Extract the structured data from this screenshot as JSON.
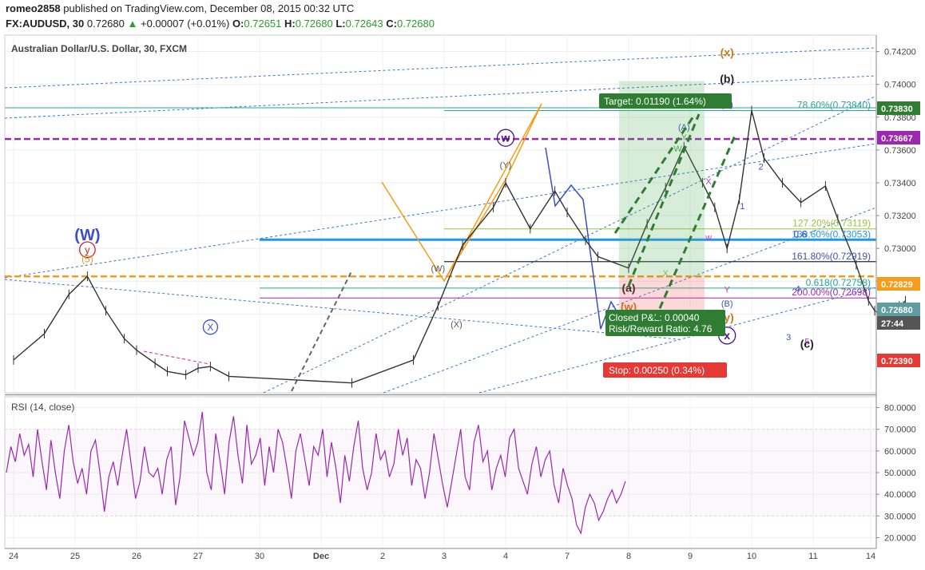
{
  "header": {
    "user": "romeo2858",
    "published_text": "published on TradingView.com, December 08, 2015 00:32 UTC",
    "symbol": "FX:AUDUSD, 30",
    "last": "0.72680",
    "change": "+0.00007 (+0.01%)",
    "o_label": "O:",
    "o": "0.72651",
    "h_label": "H:",
    "h": "0.72680",
    "l_label": "L:",
    "l": "0.72643",
    "c_label": "C:",
    "c": "0.72680"
  },
  "chart_data": {
    "type": "line",
    "title": "Australian Dollar/U.S. Dollar, 30, FXCM",
    "x_ticks": [
      "24",
      "25",
      "26",
      "27",
      "30",
      "Dec",
      "2",
      "3",
      "4",
      "7",
      "8",
      "9",
      "10",
      "11",
      "14"
    ],
    "price_axis": {
      "ticks": [
        "0.74200",
        "0.74000",
        "0.73800",
        "0.73600",
        "0.73400",
        "0.73200",
        "0.73000",
        "0.72800",
        "0.72600"
      ],
      "ylim": [
        0.7212,
        0.743
      ]
    },
    "price_series": {
      "name": "AUDUSD",
      "points": [
        [
          24.0,
          0.7232
        ],
        [
          24.5,
          0.7248
        ],
        [
          24.9,
          0.7272
        ],
        [
          25.2,
          0.7283
        ],
        [
          25.5,
          0.7262
        ],
        [
          25.8,
          0.7245
        ],
        [
          26.0,
          0.7238
        ],
        [
          26.3,
          0.723
        ],
        [
          26.5,
          0.7225
        ],
        [
          26.8,
          0.7223
        ],
        [
          27.0,
          0.7227
        ],
        [
          27.2,
          0.7228
        ],
        [
          27.5,
          0.7222
        ],
        [
          29.5,
          0.7218
        ],
        [
          30.5,
          0.7232
        ],
        [
          30.9,
          0.7265
        ],
        [
          31.3,
          0.7302
        ],
        [
          31.8,
          0.7325
        ],
        [
          32.0,
          0.734
        ],
        [
          32.4,
          0.7312
        ],
        [
          32.8,
          0.7335
        ],
        [
          33.0,
          0.7322
        ],
        [
          33.3,
          0.7305
        ],
        [
          33.5,
          0.7295
        ],
        [
          34.0,
          0.7288
        ],
        [
          34.3,
          0.7315
        ],
        [
          34.6,
          0.7337
        ],
        [
          34.9,
          0.7362
        ],
        [
          35.2,
          0.734
        ],
        [
          35.4,
          0.7325
        ],
        [
          35.6,
          0.73
        ],
        [
          35.8,
          0.733
        ],
        [
          36.0,
          0.7384
        ],
        [
          36.2,
          0.7355
        ],
        [
          36.5,
          0.734
        ],
        [
          36.8,
          0.7328
        ],
        [
          37.2,
          0.7338
        ],
        [
          37.4,
          0.7318
        ],
        [
          37.7,
          0.729
        ],
        [
          37.9,
          0.7268
        ],
        [
          38.0,
          0.7262
        ],
        [
          38.2,
          0.7258
        ],
        [
          38.4,
          0.7265
        ],
        [
          38.5,
          0.7268
        ]
      ]
    },
    "price_levels": [
      {
        "label": "0.73830",
        "color": "#2e7d32"
      },
      {
        "label": "0.73667",
        "color": "#9c27b0"
      },
      {
        "label": "0.72829",
        "color": "#f59c1a"
      },
      {
        "label": "0.72680",
        "color": "#5f9ea0"
      },
      {
        "label": "0.72390",
        "color": "#e53935"
      },
      {
        "label": "27:44",
        "color": "#555555"
      }
    ],
    "fib_levels": [
      {
        "label": "78.60%(0.73840)",
        "value": 0.7384,
        "color": "#26a69a"
      },
      {
        "label": "127.20%(0.73119)",
        "value": 0.73119,
        "color": "#9bc53d"
      },
      {
        "label": "138.60%(0.73053)",
        "value": 0.73053,
        "color": "#2196f3"
      },
      {
        "label": "161.80%(0.72919)",
        "value": 0.72919,
        "color": "#3f51b5"
      },
      {
        "label": "0.618(0.72758)",
        "value": 0.72758,
        "color": "#26a69a"
      },
      {
        "label": "200.00%(0.72698)",
        "value": 0.72698,
        "color": "#9c27b0"
      }
    ],
    "fib_overlap_fragment": "0.6",
    "horizontal_levels": [
      {
        "value": 0.73667,
        "color": "#9c27b0"
      },
      {
        "value": 0.72829,
        "color": "#f59c1a"
      },
      {
        "value": 0.73053,
        "color": "#2196f3"
      }
    ],
    "trade": {
      "target_label": "Target: 0.01190 (1.64%)",
      "stop_label": "Stop: 0.00250 (0.34%)",
      "pnl_label": "Closed P&L: 0.00040",
      "ratio_label": "Risk/Reward Ratio: 4.76",
      "entry": 0.72829,
      "target": 0.7402,
      "stop": 0.72579
    },
    "wave_labels": [
      {
        "text": "(W)",
        "x": 25.2,
        "y": 0.7305,
        "color": "#3a4fc6",
        "size": 20
      },
      {
        "text": "y",
        "x": 25.2,
        "y": 0.7297,
        "color": "#c62828",
        "size": 13,
        "circle": true
      },
      {
        "text": "(5)",
        "x": 25.2,
        "y": 0.72915,
        "color": "#c9a227",
        "size": 12
      },
      {
        "text": "X",
        "x": 27.2,
        "y": 0.725,
        "color": "#3a4fc6",
        "size": 12,
        "circle": true
      },
      {
        "text": "(W)",
        "x": 30.9,
        "y": 0.7286,
        "color": "#555",
        "size": 11
      },
      {
        "text": "(X)",
        "x": 31.2,
        "y": 0.7252,
        "color": "#555",
        "size": 11
      },
      {
        "text": "w",
        "x": 32.0,
        "y": 0.7365,
        "color": "#4a148c",
        "size": 14,
        "circle": true
      },
      {
        "text": "(Y)",
        "x": 32.0,
        "y": 0.7349,
        "color": "#555",
        "size": 11
      },
      {
        "text": "(a)",
        "x": 34.0,
        "y": 0.72735,
        "color": "#222",
        "size": 14
      },
      {
        "text": "(w)",
        "x": 34.0,
        "y": 0.7262,
        "color": "#c67c1a",
        "size": 14
      },
      {
        "text": "X",
        "x": 34.6,
        "y": 0.7283,
        "color": "#8bc34a",
        "size": 11
      },
      {
        "text": "W",
        "x": 34.8,
        "y": 0.7359,
        "color": "#4caf50",
        "size": 11
      },
      {
        "text": "(A)",
        "x": 34.9,
        "y": 0.7372,
        "color": "#3a4fc6",
        "size": 11
      },
      {
        "text": "Y",
        "x": 34.9,
        "y": 0.7366,
        "color": "#4caf50",
        "size": 11
      },
      {
        "text": "X",
        "x": 35.3,
        "y": 0.7339,
        "color": "#c03fc0",
        "size": 11
      },
      {
        "text": "w",
        "x": 35.3,
        "y": 0.7305,
        "color": "#c03fc0",
        "size": 11
      },
      {
        "text": "(x)",
        "x": 35.6,
        "y": 0.7417,
        "color": "#c67c1a",
        "size": 14
      },
      {
        "text": "(b)",
        "x": 35.6,
        "y": 0.7401,
        "color": "#222",
        "size": 14
      },
      {
        "text": "(C)",
        "x": 35.6,
        "y": 0.7386,
        "color": "#3a4fc6",
        "size": 11
      },
      {
        "text": "Y",
        "x": 35.6,
        "y": 0.7273,
        "color": "#c03fc0",
        "size": 11
      },
      {
        "text": "(B)",
        "x": 35.6,
        "y": 0.72645,
        "color": "#3a4fc6",
        "size": 11
      },
      {
        "text": "(y)",
        "x": 35.6,
        "y": 0.72555,
        "color": "#c67c1a",
        "size": 14
      },
      {
        "text": "x",
        "x": 35.6,
        "y": 0.72445,
        "color": "#4a148c",
        "size": 14,
        "circle": true
      },
      {
        "text": "1",
        "x": 35.85,
        "y": 0.7324,
        "color": "#3a4fc6",
        "size": 11
      },
      {
        "text": "2",
        "x": 36.15,
        "y": 0.7348,
        "color": "#3a4fc6",
        "size": 11
      },
      {
        "text": "4",
        "x": 36.75,
        "y": 0.72735,
        "color": "#3a4fc6",
        "size": 11
      },
      {
        "text": "3",
        "x": 36.6,
        "y": 0.7244,
        "color": "#3a4fc6",
        "size": 11
      },
      {
        "text": "5",
        "x": 36.9,
        "y": 0.72415,
        "color": "#c03fc0",
        "size": 11
      },
      {
        "text": "(c)",
        "x": 36.9,
        "y": 0.72395,
        "color": "#222",
        "size": 14
      },
      {
        "text": "y",
        "x": 39.1,
        "y": 0.7374,
        "color": "#4a148c",
        "size": 14,
        "circle": true
      },
      {
        "text": "(Y)",
        "x": 39.35,
        "y": 0.74035,
        "color": "#3a4fc6",
        "size": 20
      }
    ],
    "rsi": {
      "title": "RSI (14, close)",
      "ticks": [
        "80.0000",
        "70.0000",
        "60.0000",
        "50.0000",
        "40.0000",
        "30.0000",
        "20.0000"
      ],
      "ylim": [
        15,
        85
      ],
      "color": "#9c27b0",
      "values": [
        50,
        62,
        55,
        68,
        58,
        63,
        48,
        70,
        55,
        42,
        65,
        50,
        38,
        60,
        72,
        55,
        45,
        52,
        40,
        60,
        65,
        50,
        32,
        48,
        55,
        44,
        58,
        70,
        54,
        38,
        46,
        62,
        50,
        48,
        52,
        40,
        56,
        62,
        35,
        48,
        74,
        66,
        58,
        64,
        78,
        50,
        42,
        68,
        55,
        40,
        64,
        76,
        58,
        45,
        72,
        54,
        58,
        66,
        44,
        62,
        50,
        70,
        64,
        52,
        38,
        60,
        68,
        56,
        44,
        62,
        58,
        70,
        48,
        64,
        52,
        36,
        58,
        46,
        62,
        74,
        52,
        42,
        50,
        68,
        56,
        60,
        48,
        54,
        70,
        58,
        66,
        44,
        56,
        52,
        38,
        50,
        68,
        56,
        44,
        34,
        46,
        58,
        70,
        48,
        42,
        64,
        72,
        55,
        60,
        42,
        52,
        58,
        48,
        66,
        70,
        52,
        46,
        40,
        54,
        62,
        48,
        56,
        60,
        44,
        36,
        52,
        44,
        38,
        26,
        22,
        34,
        40,
        36,
        28,
        32,
        38,
        42,
        36,
        40,
        46
      ]
    }
  }
}
